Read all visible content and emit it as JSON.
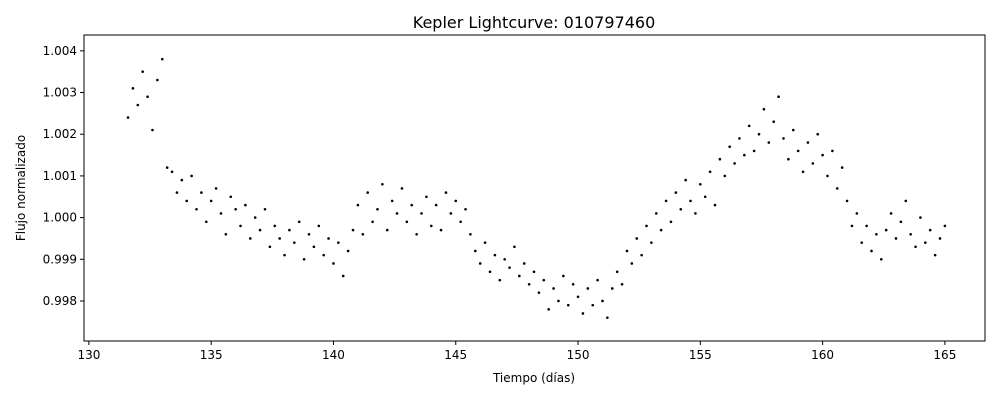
{
  "chart_data": {
    "type": "scatter",
    "title": "Kepler Lightcurve: 010797460",
    "x_label": "Tiempo (días)",
    "y_label": "Flujo normalizado",
    "color": "#000000",
    "xlim": [
      129.8,
      166.64
    ],
    "ylim": [
      0.99704,
      1.00438
    ],
    "xticks": [
      130,
      135,
      140,
      145,
      150,
      155,
      160,
      165
    ],
    "yticks": [
      0.998,
      0.999,
      {
        "value": 1.0,
        "label": "1.000"
      },
      1.001,
      1.002,
      1.003,
      1.004
    ],
    "x": [
      131.6,
      131.8,
      132.0,
      132.2,
      132.4,
      132.6,
      132.8,
      133.0,
      133.2,
      133.4,
      133.6,
      133.8,
      134.0,
      134.2,
      134.4,
      134.6,
      134.8,
      135.0,
      135.2,
      135.4,
      135.6,
      135.8,
      136.0,
      136.2,
      136.4,
      136.6,
      136.8,
      137.0,
      137.2,
      137.4,
      137.6,
      137.8,
      138.0,
      138.2,
      138.4,
      138.6,
      138.8,
      139.0,
      139.2,
      139.4,
      139.6,
      139.8,
      140.0,
      140.2,
      140.4,
      140.6,
      140.8,
      141.0,
      141.2,
      141.4,
      141.6,
      141.8,
      142.0,
      142.2,
      142.4,
      142.6,
      142.8,
      143.0,
      143.2,
      143.4,
      143.6,
      143.8,
      144.0,
      144.2,
      144.4,
      144.6,
      144.8,
      145.0,
      145.2,
      145.4,
      145.6,
      145.8,
      146.0,
      146.2,
      146.4,
      146.6,
      146.8,
      147.0,
      147.2,
      147.4,
      147.6,
      147.8,
      148.0,
      148.2,
      148.4,
      148.6,
      148.8,
      149.0,
      149.2,
      149.4,
      149.6,
      149.8,
      150.0,
      150.2,
      150.4,
      150.6,
      150.8,
      151.0,
      151.2,
      151.4,
      151.6,
      151.8,
      152.0,
      152.2,
      152.4,
      152.6,
      152.8,
      153.0,
      153.2,
      153.4,
      153.6,
      153.8,
      154.0,
      154.2,
      154.4,
      154.6,
      154.8,
      155.0,
      155.2,
      155.4,
      155.6,
      155.8,
      156.0,
      156.2,
      156.4,
      156.6,
      156.8,
      157.0,
      157.2,
      157.4,
      157.6,
      157.8,
      158.0,
      158.2,
      158.4,
      158.6,
      158.8,
      159.0,
      159.2,
      159.4,
      159.6,
      159.8,
      160.0,
      160.2,
      160.4,
      160.6,
      160.8,
      161.0,
      161.2,
      161.4,
      161.6,
      161.8,
      162.0,
      162.2,
      162.4,
      162.6,
      162.8,
      163.0,
      163.2,
      163.4,
      163.6,
      163.8,
      164.0,
      164.2,
      164.4,
      164.6,
      164.8,
      165.0
    ],
    "values": [
      1.0024,
      1.0031,
      1.0027,
      1.0035,
      1.0029,
      1.0021,
      1.0033,
      1.0038,
      1.0012,
      1.0011,
      1.0006,
      1.0009,
      1.0004,
      1.001,
      1.0002,
      1.0006,
      0.9999,
      1.0004,
      1.0007,
      1.0001,
      0.9996,
      1.0005,
      1.0002,
      0.9998,
      1.0003,
      0.9995,
      1.0,
      0.9997,
      1.0002,
      0.9993,
      0.9998,
      0.9995,
      0.9991,
      0.9997,
      0.9994,
      0.9999,
      0.999,
      0.9996,
      0.9993,
      0.9998,
      0.9991,
      0.9995,
      0.9989,
      0.9994,
      0.9986,
      0.9992,
      0.9997,
      1.0003,
      0.9996,
      1.0006,
      0.9999,
      1.0002,
      1.0008,
      0.9997,
      1.0004,
      1.0001,
      1.0007,
      0.9999,
      1.0003,
      0.9996,
      1.0001,
      1.0005,
      0.9998,
      1.0003,
      0.9997,
      1.0006,
      1.0001,
      1.0004,
      0.9999,
      1.0002,
      0.9996,
      0.9992,
      0.9989,
      0.9994,
      0.9987,
      0.9991,
      0.9985,
      0.999,
      0.9988,
      0.9993,
      0.9986,
      0.9989,
      0.9984,
      0.9987,
      0.9982,
      0.9985,
      0.9978,
      0.9983,
      0.998,
      0.9986,
      0.9979,
      0.9984,
      0.9981,
      0.9977,
      0.9983,
      0.9979,
      0.9985,
      0.998,
      0.9976,
      0.9983,
      0.9987,
      0.9984,
      0.9992,
      0.9989,
      0.9995,
      0.9991,
      0.9998,
      0.9994,
      1.0001,
      0.9997,
      1.0004,
      0.9999,
      1.0006,
      1.0002,
      1.0009,
      1.0004,
      1.0001,
      1.0008,
      1.0005,
      1.0011,
      1.0003,
      1.0014,
      1.001,
      1.0017,
      1.0013,
      1.0019,
      1.0015,
      1.0022,
      1.0016,
      1.002,
      1.0026,
      1.0018,
      1.0023,
      1.0029,
      1.0019,
      1.0014,
      1.0021,
      1.0016,
      1.0011,
      1.0018,
      1.0013,
      1.002,
      1.0015,
      1.001,
      1.0016,
      1.0007,
      1.0012,
      1.0004,
      0.9998,
      1.0001,
      0.9994,
      0.9998,
      0.9992,
      0.9996,
      0.999,
      0.9997,
      1.0001,
      0.9995,
      0.9999,
      1.0004,
      0.9996,
      0.9993,
      1.0,
      0.9994,
      0.9997,
      0.9991,
      0.9995,
      0.9998
    ]
  }
}
